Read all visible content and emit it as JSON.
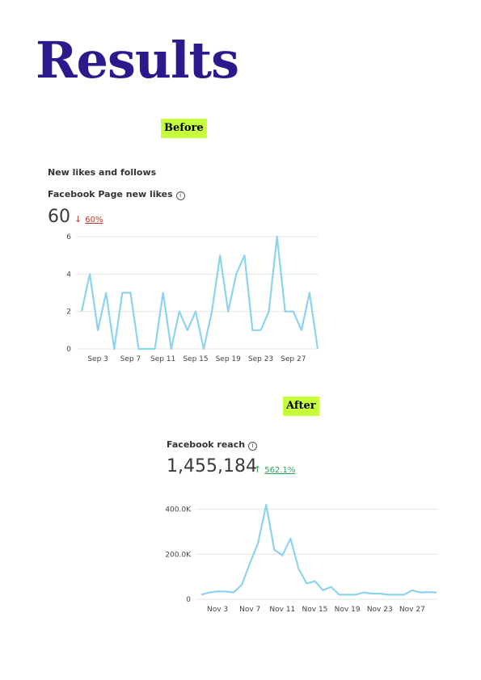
{
  "page": {
    "title": "Results",
    "title_color": "#2a1a8c",
    "tag_color": "#c8ff3c"
  },
  "before": {
    "tag": "Before",
    "section_label": "New likes and follows",
    "metric_label": "Facebook Page new likes",
    "info_icon": "info-icon",
    "value": "60",
    "delta_arrow": "↓",
    "delta_pct": "60%",
    "delta_color": "#c0392b"
  },
  "after": {
    "tag": "After",
    "metric_label": "Facebook reach",
    "info_icon": "info-icon",
    "value": "1,455,184",
    "delta_arrow": "↑",
    "delta_pct": "562.1%",
    "delta_color": "#2e9e5b"
  },
  "chart_data": [
    {
      "type": "line",
      "series_color": "#8ed3ee",
      "x": [
        1,
        2,
        3,
        4,
        5,
        6,
        7,
        8,
        9,
        10,
        11,
        12,
        13,
        14,
        15,
        16,
        17,
        18,
        19,
        20,
        21,
        22,
        23,
        24,
        25,
        26,
        27,
        28,
        29,
        30
      ],
      "values": [
        2,
        4,
        1,
        3,
        0,
        3,
        3,
        0,
        0,
        0,
        3,
        0,
        2,
        1,
        2,
        0,
        2,
        5,
        2,
        4,
        5,
        1,
        1,
        2,
        6,
        2,
        2,
        1,
        3,
        0
      ],
      "xticks": [
        {
          "x": 3,
          "label": "Sep 3"
        },
        {
          "x": 7,
          "label": "Sep 7"
        },
        {
          "x": 11,
          "label": "Sep 11"
        },
        {
          "x": 15,
          "label": "Sep 15"
        },
        {
          "x": 19,
          "label": "Sep 19"
        },
        {
          "x": 23,
          "label": "Sep 23"
        },
        {
          "x": 27,
          "label": "Sep 27"
        }
      ],
      "yticks": [
        {
          "v": 0,
          "label": "0"
        },
        {
          "v": 2,
          "label": "2"
        },
        {
          "v": 4,
          "label": "4"
        },
        {
          "v": 6,
          "label": "6"
        }
      ],
      "xlim": [
        1,
        30
      ],
      "ylim": [
        0,
        6
      ],
      "grid": true
    },
    {
      "type": "line",
      "series_color": "#8ed3ee",
      "x": [
        1,
        2,
        3,
        4,
        5,
        6,
        7,
        8,
        9,
        10,
        11,
        12,
        13,
        14,
        15,
        16,
        17,
        18,
        19,
        20,
        21,
        22,
        23,
        24,
        25,
        26,
        27,
        28,
        29,
        30
      ],
      "values": [
        20,
        30,
        35,
        35,
        30,
        65,
        160,
        250,
        420,
        220,
        195,
        270,
        135,
        70,
        80,
        40,
        55,
        20,
        20,
        20,
        30,
        25,
        25,
        20,
        20,
        20,
        40,
        30,
        32,
        30
      ],
      "xticks": [
        {
          "x": 3,
          "label": "Nov 3"
        },
        {
          "x": 7,
          "label": "Nov 7"
        },
        {
          "x": 11,
          "label": "Nov 11"
        },
        {
          "x": 15,
          "label": "Nov 15"
        },
        {
          "x": 19,
          "label": "Nov 19"
        },
        {
          "x": 23,
          "label": "Nov 23"
        },
        {
          "x": 27,
          "label": "Nov 27"
        }
      ],
      "yticks": [
        {
          "v": 0,
          "label": "0"
        },
        {
          "v": 200,
          "label": "200.0K"
        },
        {
          "v": 400,
          "label": "400.0K"
        }
      ],
      "xlim": [
        1,
        30
      ],
      "ylim": [
        0,
        420
      ],
      "grid": true
    }
  ]
}
